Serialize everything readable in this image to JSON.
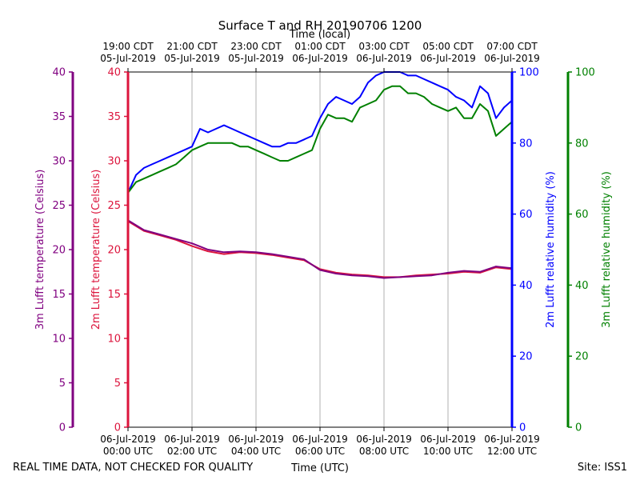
{
  "chart_data": {
    "type": "line",
    "title": "Surface T and RH 20190706 1200",
    "top_axis_label": "Time (local)",
    "xlabel": "Time (UTC)",
    "footer_left": "REAL TIME DATA, NOT CHECKED FOR QUALITY",
    "footer_right": "Site: ISS1",
    "x_range_hours": [
      0,
      12
    ],
    "bottom_ticks": [
      {
        "h": 0,
        "date": "06-Jul-2019",
        "time": "00:00 UTC"
      },
      {
        "h": 2,
        "date": "06-Jul-2019",
        "time": "02:00 UTC"
      },
      {
        "h": 4,
        "date": "06-Jul-2019",
        "time": "04:00 UTC"
      },
      {
        "h": 6,
        "date": "06-Jul-2019",
        "time": "06:00 UTC"
      },
      {
        "h": 8,
        "date": "06-Jul-2019",
        "time": "08:00 UTC"
      },
      {
        "h": 10,
        "date": "06-Jul-2019",
        "time": "10:00 UTC"
      },
      {
        "h": 12,
        "date": "06-Jul-2019",
        "time": "12:00 UTC"
      }
    ],
    "top_ticks": [
      {
        "h": 0,
        "time": "19:00 CDT",
        "date": "05-Jul-2019"
      },
      {
        "h": 2,
        "time": "21:00 CDT",
        "date": "05-Jul-2019"
      },
      {
        "h": 4,
        "time": "23:00 CDT",
        "date": "05-Jul-2019"
      },
      {
        "h": 6,
        "time": "01:00 CDT",
        "date": "06-Jul-2019"
      },
      {
        "h": 8,
        "time": "03:00 CDT",
        "date": "06-Jul-2019"
      },
      {
        "h": 10,
        "time": "05:00 CDT",
        "date": "06-Jul-2019"
      },
      {
        "h": 12,
        "time": "07:00 CDT",
        "date": "06-Jul-2019"
      }
    ],
    "axes": [
      {
        "id": "t3",
        "label": "3m Lufft temperature (Celsius)",
        "color": "#800080",
        "range": [
          0,
          40
        ],
        "ticks": [
          0,
          5,
          10,
          15,
          20,
          25,
          30,
          35,
          40
        ]
      },
      {
        "id": "t2",
        "label": "2m Lufft temperature (Celsius)",
        "color": "#dc143c",
        "range": [
          0,
          40
        ],
        "ticks": [
          0,
          5,
          10,
          15,
          20,
          25,
          30,
          35,
          40
        ]
      },
      {
        "id": "rh2",
        "label": "2m Lufft relative humidity (%)",
        "color": "#0000ff",
        "range": [
          0,
          100
        ],
        "ticks": [
          0,
          20,
          40,
          60,
          80,
          100
        ]
      },
      {
        "id": "rh3",
        "label": "3m Lufft relative humidity (%)",
        "color": "#008000",
        "range": [
          0,
          100
        ],
        "ticks": [
          0,
          20,
          40,
          60,
          80,
          100
        ]
      }
    ],
    "series": [
      {
        "name": "2m Lufft relative humidity",
        "axis": "rh2",
        "color": "#0000ff",
        "x": [
          0,
          0.25,
          0.5,
          0.75,
          1,
          1.25,
          1.5,
          1.75,
          2,
          2.25,
          2.5,
          2.75,
          3,
          3.25,
          3.5,
          3.75,
          4,
          4.25,
          4.5,
          4.75,
          5,
          5.25,
          5.5,
          5.75,
          6,
          6.25,
          6.5,
          6.75,
          7,
          7.25,
          7.5,
          7.75,
          8,
          8.25,
          8.5,
          8.75,
          9,
          9.25,
          9.5,
          9.75,
          10,
          10.25,
          10.5,
          10.75,
          11,
          11.25,
          11.5,
          11.75,
          12
        ],
        "values": [
          66,
          71,
          73,
          74,
          75,
          76,
          77,
          78,
          79,
          84,
          83,
          84,
          85,
          84,
          83,
          82,
          81,
          80,
          79,
          79,
          80,
          80,
          81,
          82,
          87,
          91,
          93,
          92,
          91,
          93,
          97,
          99,
          100,
          100,
          100,
          99,
          99,
          98,
          97,
          96,
          95,
          93,
          92,
          90,
          96,
          94,
          87,
          90,
          92
        ]
      },
      {
        "name": "3m Lufft relative humidity",
        "axis": "rh3",
        "color": "#008000",
        "x": [
          0,
          0.25,
          0.5,
          0.75,
          1,
          1.25,
          1.5,
          1.75,
          2,
          2.25,
          2.5,
          2.75,
          3,
          3.25,
          3.5,
          3.75,
          4,
          4.25,
          4.5,
          4.75,
          5,
          5.25,
          5.5,
          5.75,
          6,
          6.25,
          6.5,
          6.75,
          7,
          7.25,
          7.5,
          7.75,
          8,
          8.25,
          8.5,
          8.75,
          9,
          9.25,
          9.5,
          9.75,
          10,
          10.25,
          10.5,
          10.75,
          11,
          11.25,
          11.5,
          11.75,
          12
        ],
        "values": [
          66,
          69,
          70,
          71,
          72,
          73,
          74,
          76,
          78,
          79,
          80,
          80,
          80,
          80,
          79,
          79,
          78,
          77,
          76,
          75,
          75,
          76,
          77,
          78,
          84,
          88,
          87,
          87,
          86,
          90,
          91,
          92,
          95,
          96,
          96,
          94,
          94,
          93,
          91,
          90,
          89,
          90,
          87,
          87,
          91,
          89,
          82,
          84,
          86
        ]
      },
      {
        "name": "2m Lufft temperature",
        "axis": "t2",
        "color": "#dc143c",
        "x": [
          0,
          0.5,
          1,
          1.5,
          2,
          2.5,
          3,
          3.5,
          4,
          4.5,
          5,
          5.5,
          6,
          6.5,
          7,
          7.5,
          8,
          8.5,
          9,
          9.5,
          10,
          10.5,
          11,
          11.5,
          12
        ],
        "values": [
          23.2,
          22.1,
          21.6,
          21.1,
          20.4,
          19.8,
          19.5,
          19.7,
          19.6,
          19.4,
          19.1,
          18.8,
          17.8,
          17.4,
          17.2,
          17.1,
          16.9,
          16.9,
          17.1,
          17.2,
          17.3,
          17.5,
          17.4,
          18.0,
          17.8
        ]
      },
      {
        "name": "3m Lufft temperature",
        "axis": "t3",
        "color": "#800080",
        "x": [
          0,
          0.5,
          1,
          1.5,
          2,
          2.5,
          3,
          3.5,
          4,
          4.5,
          5,
          5.5,
          6,
          6.5,
          7,
          7.5,
          8,
          8.5,
          9,
          9.5,
          10,
          10.5,
          11,
          11.5,
          12
        ],
        "values": [
          23.3,
          22.2,
          21.7,
          21.2,
          20.7,
          20.0,
          19.7,
          19.8,
          19.7,
          19.5,
          19.2,
          18.9,
          17.7,
          17.3,
          17.1,
          17.0,
          16.8,
          16.9,
          17.0,
          17.1,
          17.4,
          17.6,
          17.5,
          18.1,
          17.9
        ]
      }
    ]
  }
}
